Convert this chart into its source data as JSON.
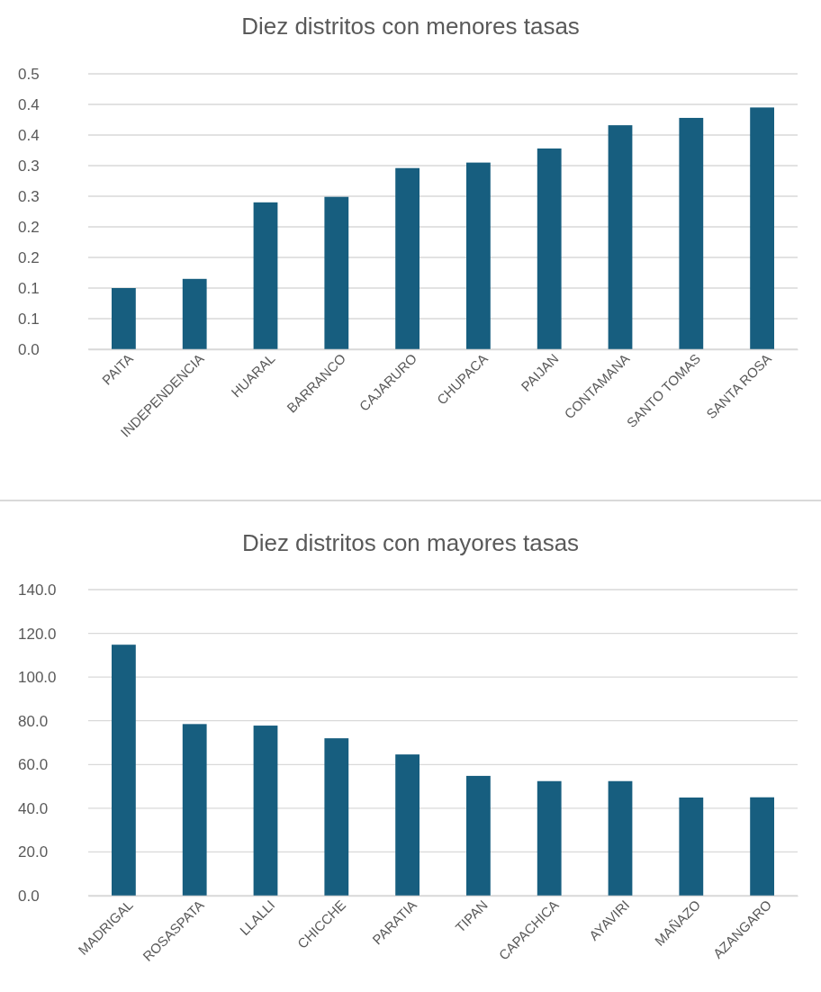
{
  "chart_data": [
    {
      "type": "bar",
      "title": "Diez distritos con menores tasas",
      "categories": [
        "PAITA",
        "INDEPENDENCIA",
        "HUARAL",
        "BARRANCO",
        "CAJARURO",
        "CHUPACA",
        "PAIJAN",
        "CONTAMANA",
        "SANTO TOMAS",
        "SANTA ROSA"
      ],
      "values": [
        0.1,
        0.115,
        0.24,
        0.249,
        0.296,
        0.305,
        0.328,
        0.366,
        0.378,
        0.395
      ],
      "color": "#175e7f",
      "ylim": [
        0,
        0.45
      ],
      "yticks": [
        {
          "value": 0,
          "label": "0.0"
        },
        {
          "value": 0.05,
          "label": "0.1"
        },
        {
          "value": 0.1,
          "label": "0.1"
        },
        {
          "value": 0.15,
          "label": "0.2"
        },
        {
          "value": 0.2,
          "label": "0.2"
        },
        {
          "value": 0.25,
          "label": "0.3"
        },
        {
          "value": 0.3,
          "label": "0.3"
        },
        {
          "value": 0.35,
          "label": "0.4"
        },
        {
          "value": 0.4,
          "label": "0.4"
        },
        {
          "value": 0.45,
          "label": "0.5"
        }
      ],
      "grid": "y"
    },
    {
      "type": "bar",
      "title": "Diez distritos con mayores tasas",
      "categories": [
        "MADRIGAL",
        "ROSASPATA",
        "LLALLI",
        "CHICCHE",
        "PARATIA",
        "TIPAN",
        "CAPACHICA",
        "AYAVIRI",
        "MAÑAZO",
        "AZANGARO"
      ],
      "values": [
        114.8,
        78.5,
        77.8,
        72.0,
        64.6,
        54.8,
        52.4,
        52.4,
        44.9,
        45.0
      ],
      "color": "#175e7f",
      "ylim": [
        0,
        140
      ],
      "yticks": [
        {
          "value": 0,
          "label": "0.0"
        },
        {
          "value": 20,
          "label": "20.0"
        },
        {
          "value": 40,
          "label": "40.0"
        },
        {
          "value": 60,
          "label": "60.0"
        },
        {
          "value": 80,
          "label": "80.0"
        },
        {
          "value": 100,
          "label": "100.0"
        },
        {
          "value": 120,
          "label": "120.0"
        },
        {
          "value": 140,
          "label": "140.0"
        }
      ],
      "grid": "y"
    }
  ]
}
